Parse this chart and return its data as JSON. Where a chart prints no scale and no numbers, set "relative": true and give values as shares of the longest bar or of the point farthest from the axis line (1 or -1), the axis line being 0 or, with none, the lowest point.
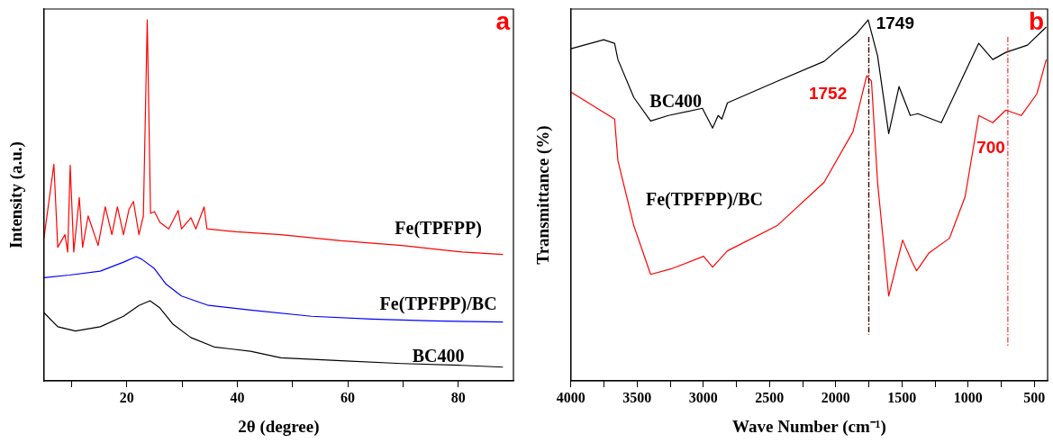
{
  "chart_data": [
    {
      "type": "line",
      "relative": true,
      "xlabel": "2θ (degree)",
      "ylabel": "Intensity (a.u.)",
      "annotations": [
        "a"
      ],
      "xlim": [
        5,
        90
      ],
      "xticks": [
        {
          "value": 10,
          "label": null
        },
        20,
        {
          "value": 30,
          "label": null
        },
        40,
        {
          "value": 50,
          "label": null
        },
        60,
        {
          "value": 70,
          "label": null
        },
        80
      ],
      "grid": false,
      "legend": false,
      "marker": "none",
      "line_style": "solid",
      "series": [
        {
          "name": "Fe(TPFPP)",
          "color": "#ff0000",
          "x": [
            5.0,
            6.8,
            7.5,
            8.8,
            9.3,
            9.75,
            10.4,
            11.4,
            12.0,
            13.0,
            14.8,
            16.1,
            17.3,
            18.3,
            19.4,
            20.4,
            21.2,
            22.2,
            23.0,
            23.7,
            24.3,
            25.0,
            26.0,
            27.6,
            29.3,
            29.9,
            31.6,
            32.5,
            34.0,
            34.5,
            39.8,
            47.9,
            58.8,
            69.8,
            80.7,
            88.1
          ],
          "values": [
            0.395,
            0.6,
            0.37,
            0.405,
            0.357,
            0.597,
            0.357,
            0.508,
            0.37,
            0.457,
            0.375,
            0.482,
            0.405,
            0.482,
            0.405,
            0.475,
            0.497,
            0.405,
            0.457,
            1.0,
            0.464,
            0.469,
            0.439,
            0.421,
            0.472,
            0.421,
            0.452,
            0.421,
            0.482,
            0.421,
            0.413,
            0.405,
            0.388,
            0.375,
            0.357,
            0.35
          ]
        },
        {
          "name": "Fe(TPFPP)/BC",
          "color": "#0000ff",
          "x": [
            5.0,
            9.6,
            15.2,
            19.4,
            21.7,
            22.7,
            25.0,
            27.1,
            29.9,
            34.8,
            42.4,
            53.4,
            64.3,
            75.2,
            88.1
          ],
          "values": [
            0.286,
            0.293,
            0.304,
            0.329,
            0.344,
            0.337,
            0.311,
            0.268,
            0.235,
            0.209,
            0.196,
            0.179,
            0.171,
            0.166,
            0.163
          ]
        },
        {
          "name": "BC400",
          "color": "#000000",
          "x": [
            5.0,
            7.5,
            10.7,
            15.2,
            19.4,
            22.2,
            24.2,
            26.0,
            28.3,
            31.6,
            35.8,
            42.4,
            47.9,
            58.8,
            69.8,
            80.7,
            88.1
          ],
          "values": [
            0.189,
            0.15,
            0.138,
            0.15,
            0.179,
            0.209,
            0.222,
            0.202,
            0.158,
            0.12,
            0.094,
            0.082,
            0.064,
            0.056,
            0.048,
            0.043,
            0.038
          ]
        }
      ]
    },
    {
      "type": "line",
      "relative": true,
      "xlabel": "Wave Number (cm⁻¹)",
      "ylabel": "Transmittance (%)",
      "annotations": [
        "b"
      ],
      "xlim": [
        4000,
        400
      ],
      "xticks": [
        4000,
        {
          "value": 3750,
          "label": null
        },
        3500,
        {
          "value": 3250,
          "label": null
        },
        3000,
        {
          "value": 2750,
          "label": null
        },
        2500,
        {
          "value": 2250,
          "label": null
        },
        2000,
        {
          "value": 1750,
          "label": null
        },
        1500,
        {
          "value": 1250,
          "label": null
        },
        1000,
        {
          "value": 750,
          "label": null
        },
        500
      ],
      "grid": false,
      "legend": false,
      "marker": "none",
      "line_style": "solid",
      "ref_lines": [
        {
          "axis": "x",
          "value": 1752,
          "label": "1752",
          "color": "#ff0000",
          "line_style": "dashdot"
        },
        {
          "axis": "x",
          "value": 1749,
          "label": "1749",
          "color": "#000000",
          "line_style": "dashdot"
        },
        {
          "axis": "x",
          "value": 700,
          "label": "700",
          "color": "#ff0000",
          "line_style": "dashdot"
        }
      ],
      "series": [
        {
          "name": "BC400",
          "color": "#000000",
          "x": [
            4000,
            3752,
            3670,
            3645,
            3525,
            3398,
            3263,
            3007,
            2930,
            2888,
            2860,
            2818,
            2442,
            2088,
            1847,
            1755,
            1684,
            1600,
            1522,
            1437,
            1380,
            1203,
            920,
            814,
            715,
            552,
            410
          ],
          "values": [
            0.92,
            0.945,
            0.935,
            0.89,
            0.785,
            0.72,
            0.735,
            0.755,
            0.7,
            0.735,
            0.725,
            0.77,
            0.83,
            0.885,
            0.96,
            1.0,
            0.9,
            0.685,
            0.815,
            0.735,
            0.74,
            0.715,
            0.935,
            0.89,
            0.91,
            0.93,
            0.98
          ]
        },
        {
          "name": "Fe(TPFPP)/BC",
          "color": "#ff0000",
          "x": [
            4000,
            3670,
            3645,
            3525,
            3398,
            3245,
            2998,
            2930,
            2818,
            2442,
            2088,
            1870,
            1766,
            1730,
            1684,
            1600,
            1495,
            1424,
            1389,
            1294,
            1141,
            1023,
            920,
            814,
            715,
            599,
            481,
            410
          ],
          "values": [
            0.8,
            0.725,
            0.61,
            0.43,
            0.295,
            0.31,
            0.345,
            0.315,
            0.36,
            0.43,
            0.55,
            0.69,
            0.845,
            0.83,
            0.55,
            0.235,
            0.39,
            0.33,
            0.305,
            0.355,
            0.395,
            0.51,
            0.735,
            0.715,
            0.75,
            0.735,
            0.795,
            0.89
          ]
        }
      ]
    }
  ]
}
